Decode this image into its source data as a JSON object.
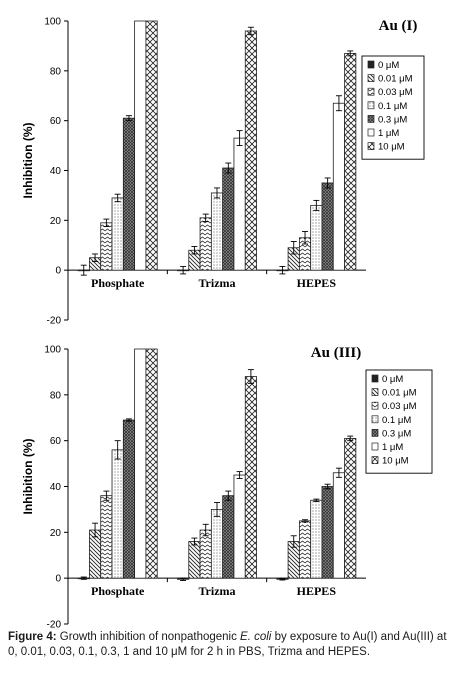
{
  "caption": {
    "label": "Figure 4:",
    "text_before": " Growth inhibition of nonpathogenic ",
    "species": "E. coli",
    "text_after": " by exposure to Au(I) and Au(III) at 0, 0.01, 0.03, 0.1, 0.3, 1 and 10 μM for 2 h in PBS, Trizma and HEPES."
  },
  "colors": {
    "axis": "#000000",
    "bar_fill": "#ffffff",
    "bar_stroke": "#222222"
  },
  "chart_data": [
    {
      "type": "bar",
      "title": "Au (I)",
      "ylabel": "Inhibition (%)",
      "xlabel": "",
      "ylim": [
        -20,
        100
      ],
      "yticks": [
        -20,
        0,
        20,
        40,
        60,
        80,
        100
      ],
      "grid": false,
      "legend_position": "right",
      "categories": [
        "Phosphate",
        "Trizma",
        "HEPES"
      ],
      "series": [
        {
          "name": "0 μM",
          "pattern": "solid",
          "values": [
            0,
            0,
            0
          ],
          "errors": [
            2,
            1.5,
            1.5
          ]
        },
        {
          "name": "0.01 μM",
          "pattern": "back",
          "values": [
            5,
            8,
            9
          ],
          "errors": [
            1.5,
            1.5,
            2.5
          ]
        },
        {
          "name": "0.03 μM",
          "pattern": "zig",
          "values": [
            19,
            21,
            13
          ],
          "errors": [
            1.5,
            1.5,
            2.5
          ]
        },
        {
          "name": "0.1 μM",
          "pattern": "dots",
          "values": [
            29,
            31,
            26
          ],
          "errors": [
            1.5,
            2,
            2
          ]
        },
        {
          "name": "0.3 μM",
          "pattern": "cross",
          "values": [
            61,
            41,
            35
          ],
          "errors": [
            1,
            2,
            2
          ]
        },
        {
          "name": "1 μM",
          "pattern": "plain",
          "values": [
            100,
            53,
            67
          ],
          "errors": [
            0,
            3,
            3
          ]
        },
        {
          "name": "10 μM",
          "pattern": "diam",
          "values": [
            100,
            96,
            87
          ],
          "errors": [
            0,
            1.5,
            1
          ]
        }
      ]
    },
    {
      "type": "bar",
      "title": "Au (III)",
      "ylabel": "Inhibition (%)",
      "xlabel": "",
      "ylim": [
        -20,
        100
      ],
      "yticks": [
        -20,
        0,
        20,
        40,
        60,
        80,
        100
      ],
      "grid": false,
      "legend_position": "right",
      "categories": [
        "Phosphate",
        "Trizma",
        "HEPES"
      ],
      "series": [
        {
          "name": "0 μM",
          "pattern": "solid",
          "values": [
            0,
            -0.5,
            -0.5
          ],
          "errors": [
            0.5,
            0.5,
            0.3
          ]
        },
        {
          "name": "0.01 μM",
          "pattern": "back",
          "values": [
            21,
            16,
            16
          ],
          "errors": [
            3,
            1.5,
            2.5
          ]
        },
        {
          "name": "0.03 μM",
          "pattern": "zig",
          "values": [
            36,
            21,
            25
          ],
          "errors": [
            2,
            2.5,
            0.5
          ]
        },
        {
          "name": "0.1 μM",
          "pattern": "dots",
          "values": [
            56,
            30,
            34
          ],
          "errors": [
            4,
            3,
            0.5
          ]
        },
        {
          "name": "0.3 μM",
          "pattern": "cross",
          "values": [
            69,
            36,
            40
          ],
          "errors": [
            0.5,
            2,
            1
          ]
        },
        {
          "name": "1 μM",
          "pattern": "plain",
          "values": [
            100,
            45,
            46
          ],
          "errors": [
            0,
            1.5,
            2
          ]
        },
        {
          "name": "10 μM",
          "pattern": "diam",
          "values": [
            100,
            88,
            61
          ],
          "errors": [
            0,
            3,
            1
          ]
        }
      ]
    }
  ]
}
